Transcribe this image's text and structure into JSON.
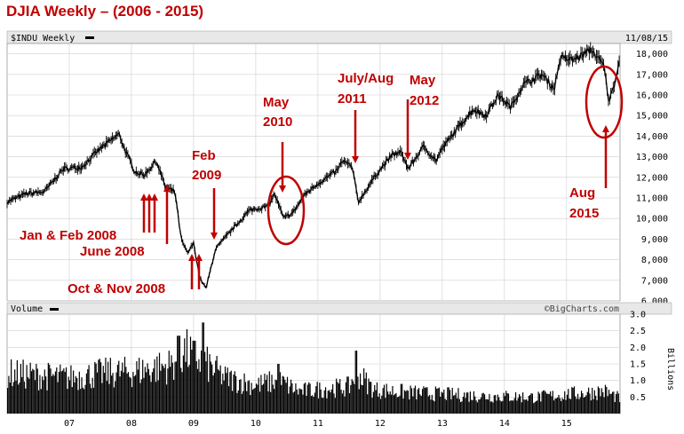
{
  "title": "DJIA Weekly – (2006 - 2015)",
  "colors": {
    "annotation": "#c00000",
    "price": "#000000",
    "grid": "#cfcfcf",
    "panel_bg": "#ffffff"
  },
  "chart_data": {
    "type": "line",
    "price_panel": {
      "symbol_label": "$INDU Weekly",
      "date_label": "11/08/15",
      "y_range": [
        6000,
        18500
      ],
      "y_ticks": [
        "6,000",
        "7,000",
        "8,000",
        "9,000",
        "10,000",
        "11,000",
        "12,000",
        "13,000",
        "14,000",
        "15,000",
        "16,000",
        "17,000",
        "18,000"
      ],
      "series": [
        {
          "points": [
            [
              2006.0,
              10800
            ],
            [
              2006.3,
              11200
            ],
            [
              2006.6,
              11300
            ],
            [
              2006.9,
              12400
            ],
            [
              2007.2,
              12500
            ],
            [
              2007.5,
              13400
            ],
            [
              2007.8,
              14100
            ],
            [
              2007.9,
              13300
            ],
            [
              2008.05,
              12300
            ],
            [
              2008.2,
              12100
            ],
            [
              2008.4,
              12800
            ],
            [
              2008.55,
              11500
            ],
            [
              2008.7,
              11300
            ],
            [
              2008.8,
              9000
            ],
            [
              2008.9,
              8300
            ],
            [
              2009.0,
              8800
            ],
            [
              2009.1,
              7100
            ],
            [
              2009.2,
              6600
            ],
            [
              2009.35,
              8500
            ],
            [
              2009.6,
              9400
            ],
            [
              2009.9,
              10400
            ],
            [
              2010.2,
              10600
            ],
            [
              2010.3,
              11200
            ],
            [
              2010.45,
              10000
            ],
            [
              2010.6,
              10300
            ],
            [
              2010.8,
              11200
            ],
            [
              2011.0,
              11700
            ],
            [
              2011.3,
              12300
            ],
            [
              2011.4,
              12800
            ],
            [
              2011.55,
              12500
            ],
            [
              2011.65,
              10800
            ],
            [
              2011.8,
              11500
            ],
            [
              2011.95,
              12200
            ],
            [
              2012.2,
              13100
            ],
            [
              2012.35,
              13200
            ],
            [
              2012.45,
              12400
            ],
            [
              2012.7,
              13500
            ],
            [
              2012.9,
              12800
            ],
            [
              2013.0,
              13400
            ],
            [
              2013.3,
              14600
            ],
            [
              2013.5,
              15300
            ],
            [
              2013.7,
              15000
            ],
            [
              2013.9,
              16000
            ],
            [
              2014.1,
              15400
            ],
            [
              2014.3,
              16500
            ],
            [
              2014.6,
              17000
            ],
            [
              2014.8,
              16300
            ],
            [
              2014.9,
              17800
            ],
            [
              2015.1,
              17700
            ],
            [
              2015.4,
              18200
            ],
            [
              2015.5,
              17800
            ],
            [
              2015.6,
              17400
            ],
            [
              2015.68,
              15700
            ],
            [
              2015.75,
              16300
            ],
            [
              2015.86,
              17800
            ]
          ]
        }
      ]
    },
    "volume_panel": {
      "label": "Volume",
      "unit_label": "Billions",
      "y_range": [
        0,
        3.0
      ],
      "y_ticks": [
        "0.5",
        "1.0",
        "1.5",
        "2.0",
        "2.5",
        "3.0"
      ],
      "volume_profile": [
        [
          2006.0,
          1.35
        ],
        [
          2007.0,
          1.2
        ],
        [
          2007.5,
          1.35
        ],
        [
          2008.0,
          1.4
        ],
        [
          2008.6,
          1.6
        ],
        [
          2008.85,
          2.1
        ],
        [
          2009.1,
          1.8
        ],
        [
          2009.5,
          1.2
        ],
        [
          2010.0,
          0.95
        ],
        [
          2010.35,
          1.1
        ],
        [
          2010.7,
          0.75
        ],
        [
          2011.5,
          0.9
        ],
        [
          2011.6,
          1.4
        ],
        [
          2011.9,
          0.8
        ],
        [
          2012.5,
          0.7
        ],
        [
          2013.5,
          0.6
        ],
        [
          2014.5,
          0.55
        ],
        [
          2015.6,
          0.75
        ],
        [
          2015.86,
          0.5
        ]
      ],
      "volume_spikes": [
        [
          2008.75,
          2.35
        ],
        [
          2009.15,
          2.75
        ],
        [
          2009.0,
          2.2
        ],
        [
          2011.6,
          1.9
        ],
        [
          2010.35,
          1.5
        ]
      ]
    },
    "x_ticks": [
      "07",
      "08",
      "09",
      "10",
      "11",
      "12",
      "13",
      "14",
      "15"
    ],
    "x_range": [
      2006.0,
      2015.86
    ],
    "source_label": "©BigCharts.com"
  },
  "annotations": {
    "jan_feb_2008": "Jan & Feb 2008",
    "june_2008": "June 2008",
    "oct_nov_2008": "Oct & Nov 2008",
    "feb_2009": [
      "Feb",
      "2009"
    ],
    "may_2010": [
      "May",
      "2010"
    ],
    "july_aug_2011": [
      "July/Aug",
      "2011"
    ],
    "may_2012": [
      "May",
      "2012"
    ],
    "aug_2015": [
      "Aug",
      "2015"
    ]
  }
}
